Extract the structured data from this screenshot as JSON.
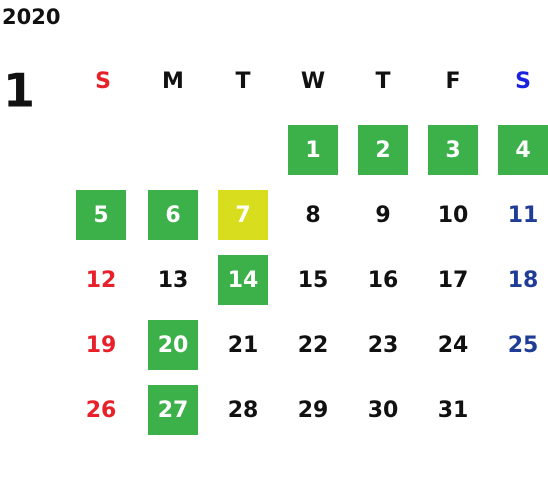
{
  "year": "2020",
  "month": "1",
  "weekdays": [
    "S",
    "M",
    "T",
    "W",
    "T",
    "F",
    "S"
  ],
  "header_colors": [
    "#e8202a",
    "#111111",
    "#111111",
    "#111111",
    "#111111",
    "#111111",
    "#1a22e0"
  ],
  "day_colors": [
    "#e8202a",
    "#111111",
    "#111111",
    "#111111",
    "#111111",
    "#111111",
    "#1f3d96"
  ],
  "highlight_text_color": "#ffffff",
  "weeks": [
    [
      null,
      null,
      null,
      {
        "day": 1,
        "bg": "#3cb14a"
      },
      {
        "day": 2,
        "bg": "#3cb14a"
      },
      {
        "day": 3,
        "bg": "#3cb14a"
      },
      {
        "day": 4,
        "bg": "#3cb14a"
      }
    ],
    [
      {
        "day": 5,
        "bg": "#3cb14a"
      },
      {
        "day": 6,
        "bg": "#3cb14a"
      },
      {
        "day": 7,
        "bg": "#d8de1e"
      },
      8,
      9,
      10,
      11
    ],
    [
      12,
      13,
      {
        "day": 14,
        "bg": "#3cb14a"
      },
      15,
      16,
      17,
      18
    ],
    [
      19,
      {
        "day": 20,
        "bg": "#3cb14a"
      },
      21,
      22,
      23,
      24,
      25
    ],
    [
      26,
      {
        "day": 27,
        "bg": "#3cb14a"
      },
      28,
      29,
      30,
      31,
      null
    ]
  ]
}
